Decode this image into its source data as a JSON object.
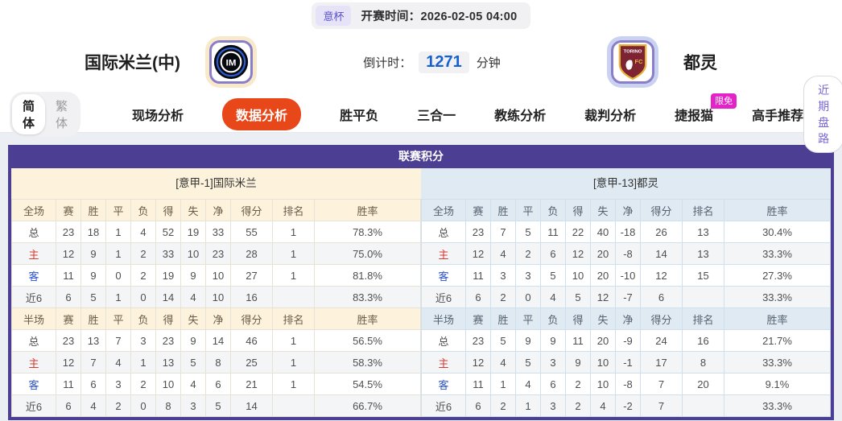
{
  "match_bar": {
    "league_badge": "意杯",
    "kickoff_label": "开赛时间：",
    "kickoff_time": "2026-02-05 04:00"
  },
  "teams": {
    "home_name": "国际米兰(中)",
    "away_name": "都灵",
    "home_logo": "inter-milan",
    "away_logo": "torino",
    "countdown_label": "倒计时：",
    "countdown_value": "1271",
    "countdown_unit": "分钟"
  },
  "nav": {
    "lang_toggle": [
      {
        "label": "简体",
        "active": true
      },
      {
        "label": "繁体",
        "active": false
      }
    ],
    "tabs": [
      {
        "label": "现场分析",
        "active": false
      },
      {
        "label": "数据分析",
        "active": true
      },
      {
        "label": "胜平负",
        "active": false
      },
      {
        "label": "三合一",
        "active": false
      },
      {
        "label": "教练分析",
        "active": false
      },
      {
        "label": "裁判分析",
        "active": false
      },
      {
        "label": "捷报猫",
        "active": false,
        "badge": "限免"
      },
      {
        "label": "高手推荐",
        "active": false
      }
    ],
    "right_button": "近期盘路"
  },
  "colors": {
    "accent_purple": "#4c3e92",
    "active_tab_orange": "#e8471a",
    "badge_magenta": "#e322c7",
    "countdown_blue": "#1661cf",
    "home_panel_cream": "#fdf3dc",
    "away_panel_blue": "#dfeaf3",
    "row_label_red": "#d63a2f",
    "row_label_blue": "#2a52cc"
  },
  "standings": {
    "title": "联赛积分",
    "columns_full": [
      "全场",
      "赛",
      "胜",
      "平",
      "负",
      "得",
      "失",
      "净",
      "得分",
      "排名",
      "胜率"
    ],
    "columns_half": [
      "半场",
      "赛",
      "胜",
      "平",
      "负",
      "得",
      "失",
      "净",
      "得分",
      "排名",
      "胜率"
    ],
    "home": {
      "header": "[意甲-1]国际米兰",
      "full": [
        {
          "label": "总",
          "type": "",
          "values": [
            "23",
            "18",
            "1",
            "4",
            "52",
            "19",
            "33",
            "55",
            "1",
            "78.3%"
          ]
        },
        {
          "label": "主",
          "type": "red",
          "values": [
            "12",
            "9",
            "1",
            "2",
            "33",
            "10",
            "23",
            "28",
            "1",
            "75.0%"
          ]
        },
        {
          "label": "客",
          "type": "blue",
          "values": [
            "11",
            "9",
            "0",
            "2",
            "19",
            "9",
            "10",
            "27",
            "1",
            "81.8%"
          ]
        },
        {
          "label": "近6",
          "type": "",
          "values": [
            "6",
            "5",
            "1",
            "0",
            "14",
            "4",
            "10",
            "16",
            "",
            "83.3%"
          ]
        }
      ],
      "half": [
        {
          "label": "总",
          "type": "",
          "values": [
            "23",
            "13",
            "7",
            "3",
            "23",
            "9",
            "14",
            "46",
            "1",
            "56.5%"
          ]
        },
        {
          "label": "主",
          "type": "red",
          "values": [
            "12",
            "7",
            "4",
            "1",
            "13",
            "5",
            "8",
            "25",
            "1",
            "58.3%"
          ]
        },
        {
          "label": "客",
          "type": "blue",
          "values": [
            "11",
            "6",
            "3",
            "2",
            "10",
            "4",
            "6",
            "21",
            "1",
            "54.5%"
          ]
        },
        {
          "label": "近6",
          "type": "",
          "values": [
            "6",
            "4",
            "2",
            "0",
            "8",
            "3",
            "5",
            "14",
            "",
            "66.7%"
          ]
        }
      ]
    },
    "away": {
      "header": "[意甲-13]都灵",
      "full": [
        {
          "label": "总",
          "type": "",
          "values": [
            "23",
            "7",
            "5",
            "11",
            "22",
            "40",
            "-18",
            "26",
            "13",
            "30.4%"
          ]
        },
        {
          "label": "主",
          "type": "red",
          "values": [
            "12",
            "4",
            "2",
            "6",
            "12",
            "20",
            "-8",
            "14",
            "13",
            "33.3%"
          ]
        },
        {
          "label": "客",
          "type": "blue",
          "values": [
            "11",
            "3",
            "3",
            "5",
            "10",
            "20",
            "-10",
            "12",
            "15",
            "27.3%"
          ]
        },
        {
          "label": "近6",
          "type": "",
          "values": [
            "6",
            "2",
            "0",
            "4",
            "5",
            "12",
            "-7",
            "6",
            "",
            "33.3%"
          ]
        }
      ],
      "half": [
        {
          "label": "总",
          "type": "",
          "values": [
            "23",
            "5",
            "9",
            "9",
            "11",
            "20",
            "-9",
            "24",
            "16",
            "21.7%"
          ]
        },
        {
          "label": "主",
          "type": "red",
          "values": [
            "12",
            "4",
            "5",
            "3",
            "9",
            "10",
            "-1",
            "17",
            "8",
            "33.3%"
          ]
        },
        {
          "label": "客",
          "type": "blue",
          "values": [
            "11",
            "1",
            "4",
            "6",
            "2",
            "10",
            "-8",
            "7",
            "20",
            "9.1%"
          ]
        },
        {
          "label": "近6",
          "type": "",
          "values": [
            "6",
            "2",
            "1",
            "3",
            "2",
            "4",
            "-2",
            "7",
            "",
            "33.3%"
          ]
        }
      ]
    }
  }
}
